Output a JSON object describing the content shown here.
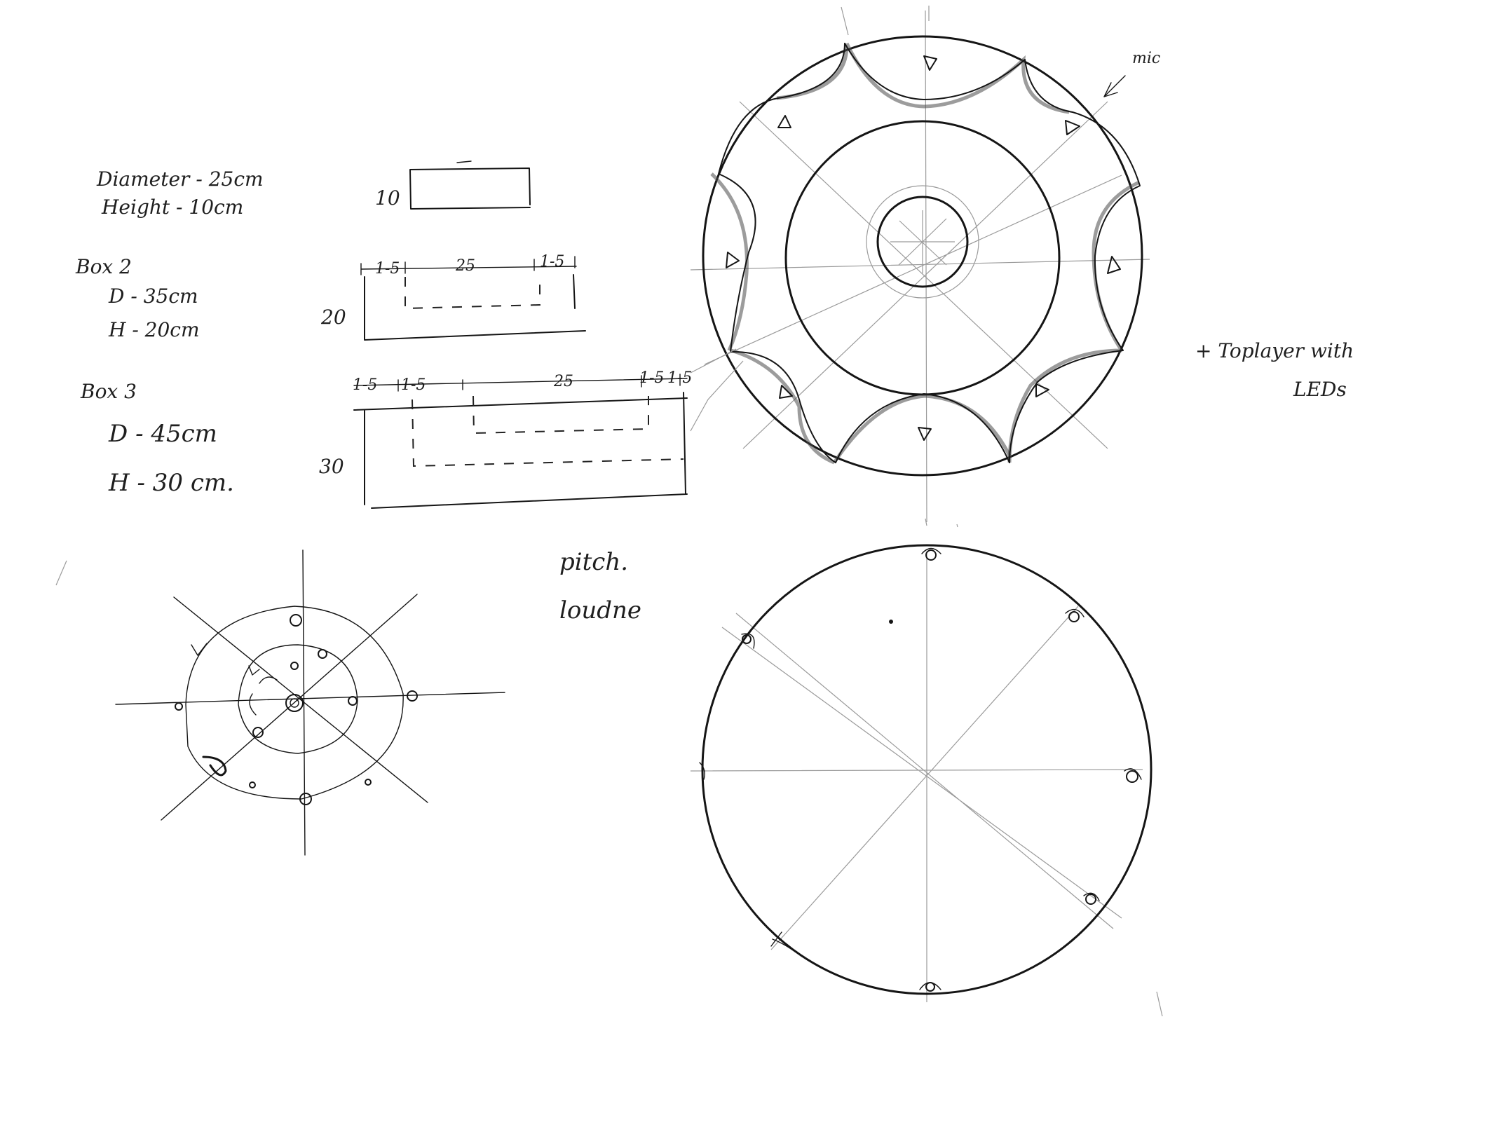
{
  "notes": {
    "box1": {
      "diameter": "Diameter - 25cm",
      "height": "Height - 10cm"
    },
    "box2": {
      "title": "Box 2",
      "diameter": "D - 35cm",
      "height": "H - 20cm"
    },
    "box3": {
      "title": "Box 3",
      "diameter": "D - 45cm",
      "height": "H - 30 cm."
    },
    "pitch": "pitch.",
    "loudness": "loudne",
    "top_layer_note": "+ Toplayer with",
    "top_layer_note_2": "LEDs",
    "mic_label": "mic"
  },
  "dimensions": {
    "box1_height": "10",
    "box2_height": "20",
    "box3_height": "30",
    "box2_top": [
      "1-5",
      "25",
      "1-5"
    ],
    "box3_top": [
      "1-5",
      "1-5",
      "25",
      "1-5",
      "1-5"
    ]
  }
}
